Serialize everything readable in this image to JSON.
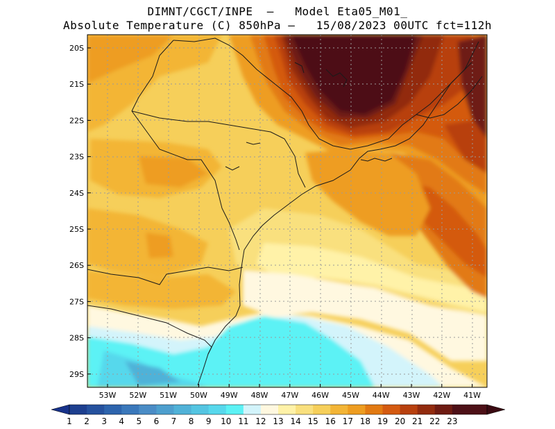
{
  "title": {
    "line1": "DIMNT/CGCT/INPE  –   Model Eta05_M01_",
    "line2": "Absolute Temperature (C) 850hPa –   15/08/2023 00UTC fct=112h"
  },
  "map": {
    "lat_labels": [
      "20S",
      "21S",
      "22S",
      "23S",
      "24S",
      "25S",
      "26S",
      "27S",
      "28S",
      "29S"
    ],
    "lon_labels": [
      "53W",
      "52W",
      "51W",
      "50W",
      "49W",
      "48W",
      "47W",
      "46W",
      "45W",
      "44W",
      "43W",
      "42W",
      "41W"
    ],
    "gridlines": "dotted"
  },
  "colorbar": {
    "labels": [
      "1",
      "2",
      "3",
      "4",
      "5",
      "6",
      "7",
      "8",
      "9",
      "10",
      "11",
      "12",
      "13",
      "14",
      "15",
      "16",
      "17",
      "18",
      "19",
      "20",
      "21",
      "22",
      "23"
    ],
    "colors": [
      "#1d3f8f",
      "#25519e",
      "#2d64ad",
      "#3a78bb",
      "#4a8cc6",
      "#4d9fce",
      "#50b2d8",
      "#54c5e2",
      "#57d8ec",
      "#5cf2f5",
      "#d3f4fb",
      "#fff8e0",
      "#fff2a8",
      "#f9e07e",
      "#f6cf5a",
      "#f3b536",
      "#ee9d20",
      "#e27a12",
      "#d45a10",
      "#b8400e",
      "#922b0e",
      "#6e1b12",
      "#4d1017"
    ],
    "min_arrow_color": "#17328a",
    "max_arrow_color": "#3a0a12"
  }
}
